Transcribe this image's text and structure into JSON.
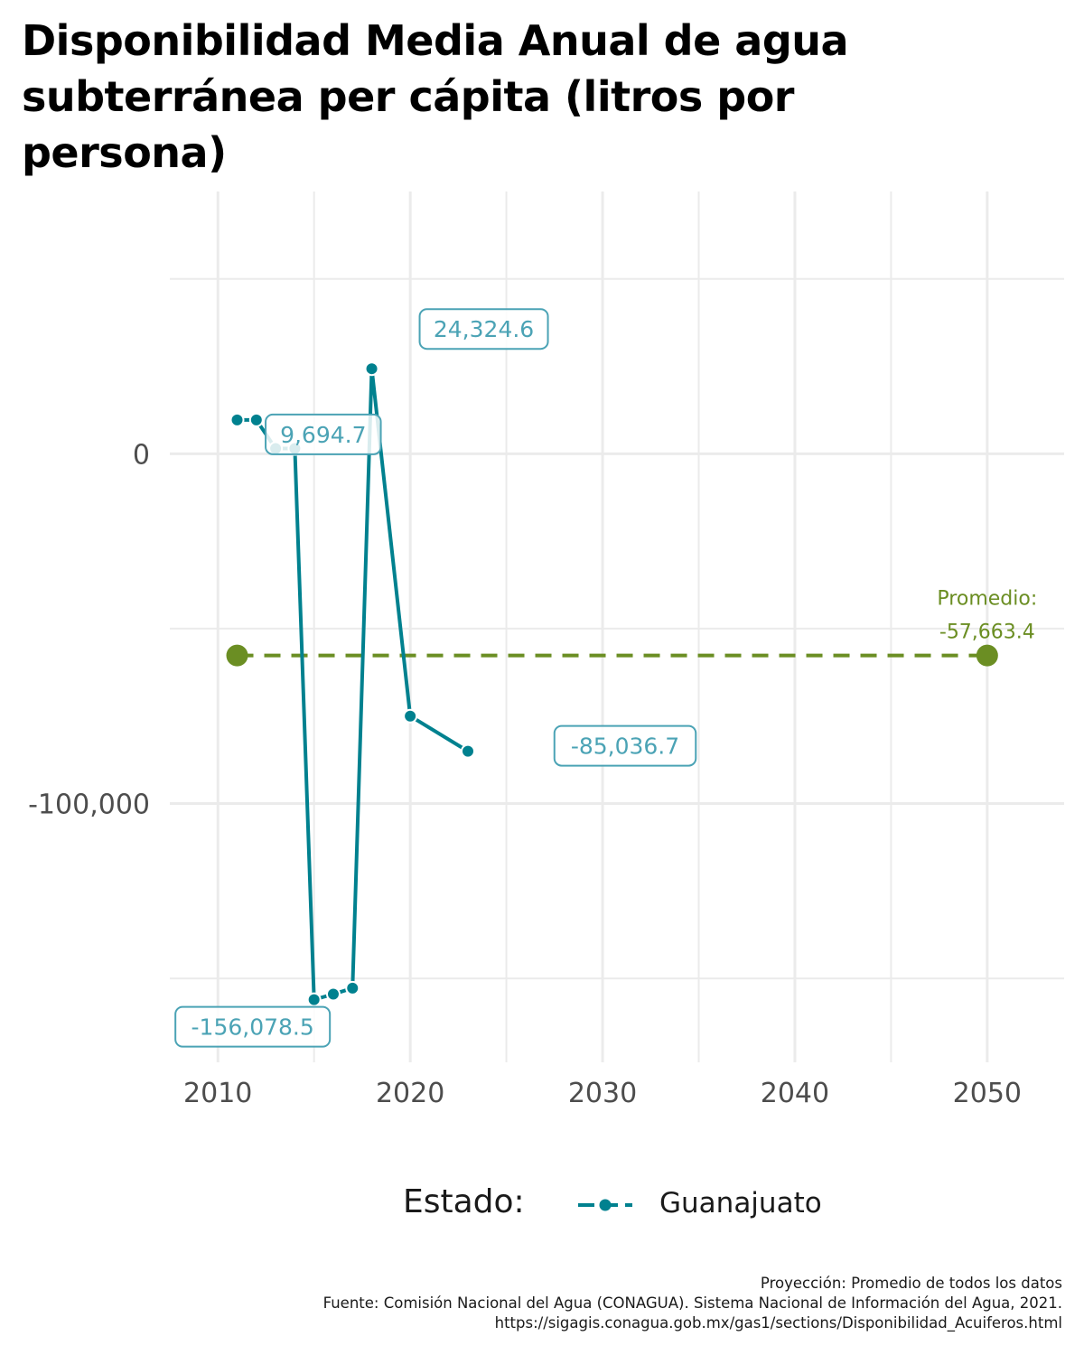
{
  "title": "Disponibilidad Media Anual de agua subterránea per cápita (litros por persona)",
  "chart_data": {
    "type": "line",
    "x": [
      2011,
      2012,
      2013,
      2014,
      2015,
      2016,
      2017,
      2018,
      2020,
      2023
    ],
    "series": [
      {
        "name": "Guanajuato",
        "color": "#00818F",
        "values": [
          9694.7,
          9694.7,
          1500,
          1500,
          -156078.5,
          -154500,
          -152800,
          24324.6,
          -75000,
          -85036.7
        ]
      }
    ],
    "xlim": [
      2007.5,
      2054
    ],
    "ylim": [
      -174000,
      75000
    ],
    "x_ticks": [
      "2010",
      "2020",
      "2030",
      "2040",
      "2050"
    ],
    "y_ticks": [
      "0",
      "-100,000"
    ],
    "grid": true,
    "annotations": [
      {
        "text": "24,324.6",
        "x": 2018,
        "y": 24324.6
      },
      {
        "text": "9,694.7",
        "x": 2012,
        "y": 9694.7
      },
      {
        "text": "-85,036.7",
        "x": 2023,
        "y": -85036.7
      },
      {
        "text": "-156,078.5",
        "x": 2015,
        "y": -156078.5
      }
    ],
    "projection": {
      "label_line1": "Promedio:",
      "label_line2": "-57,663.4",
      "value": -57663.4,
      "x_start": 2011,
      "x_end": 2050,
      "color": "#6B8E23"
    },
    "legend": {
      "title": "Estado:",
      "entries": [
        "Guanajuato"
      ],
      "placement": "bottom"
    }
  },
  "caption": {
    "line1": "Proyección: Promedio de todos los datos",
    "line2": "Fuente: Comisión Nacional del Agua (CONAGUA). Sistema Nacional de Información del Agua, 2021.",
    "line3": "https://sigagis.conagua.gob.mx/gas1/sections/Disponibilidad_Acuiferos.html"
  }
}
